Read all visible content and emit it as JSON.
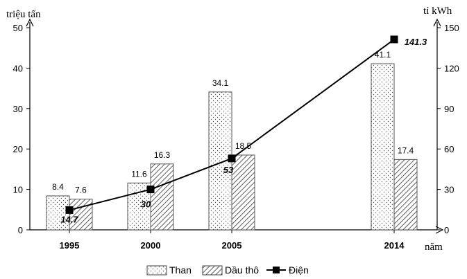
{
  "chart_data": {
    "type": "bar",
    "categories": [
      "1995",
      "2000",
      "2005",
      "2014"
    ],
    "x_axis_label": "năm",
    "left_axis": {
      "label": "triệu tấn",
      "range": [
        0,
        50
      ],
      "ticks": [
        "0",
        "10",
        "20",
        "30",
        "40",
        "50"
      ]
    },
    "right_axis": {
      "label": "tỉ kWh",
      "range": [
        0,
        150
      ],
      "ticks": [
        "0",
        "30",
        "60",
        "90",
        "120",
        "150"
      ]
    },
    "series": [
      {
        "name": "Than",
        "type": "bar",
        "axis": "left",
        "values": [
          8.4,
          11.6,
          34.1,
          41.1
        ],
        "labels": [
          "8.4",
          "11.6",
          "34.1",
          "41.1"
        ],
        "pattern": "dots"
      },
      {
        "name": "Dầu thô",
        "type": "bar",
        "axis": "left",
        "values": [
          7.6,
          16.3,
          18.5,
          17.4
        ],
        "labels": [
          "7.6",
          "16.3",
          "18.5",
          "17.4"
        ],
        "pattern": "diagonal-hatch"
      },
      {
        "name": "Điện",
        "type": "line",
        "axis": "right",
        "values": [
          14.7,
          30,
          53,
          141.3
        ],
        "labels": [
          "14.7",
          "30",
          "53",
          "141.3"
        ],
        "marker": "square",
        "color": "#000000"
      }
    ],
    "grid": false,
    "legend_position": "bottom"
  }
}
